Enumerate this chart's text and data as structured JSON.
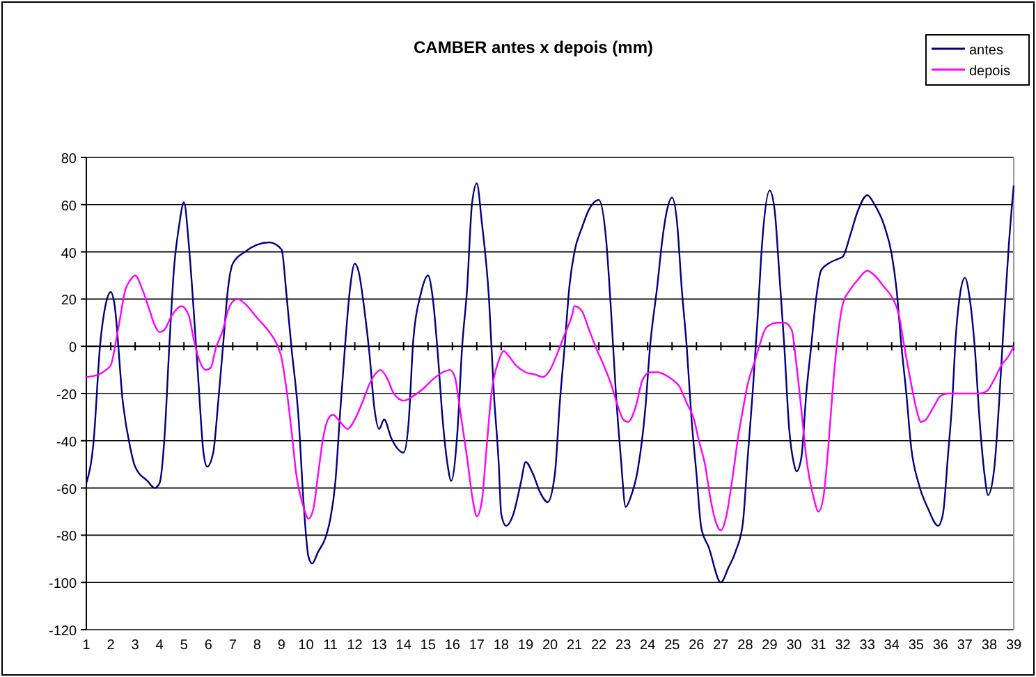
{
  "chart_data": {
    "type": "line",
    "title": "CAMBER antes x depois (mm)",
    "xlim": [
      1,
      39
    ],
    "xticks": [
      1,
      2,
      3,
      4,
      5,
      6,
      7,
      8,
      9,
      10,
      11,
      12,
      13,
      14,
      15,
      16,
      17,
      18,
      19,
      20,
      21,
      22,
      23,
      24,
      25,
      26,
      27,
      28,
      29,
      30,
      31,
      32,
      33,
      34,
      35,
      36,
      37,
      38,
      39
    ],
    "ylim": [
      -120,
      80
    ],
    "yticks": [
      -120,
      -100,
      -80,
      -60,
      -40,
      -20,
      0,
      20,
      40,
      60,
      80
    ],
    "grid": "y",
    "legend": "top right",
    "line_style": "solid",
    "series": [
      {
        "name": "antes",
        "color": "#000080",
        "x": [
          1,
          1.3,
          1.56,
          1.8,
          2,
          2.15,
          2.5,
          2.8,
          3,
          3.5,
          3.8,
          4,
          4.2,
          4.4,
          4.6,
          4.8,
          5,
          5.2,
          5.4,
          5.6,
          5.8,
          5.95,
          6.2,
          6.4,
          6.6,
          6.8,
          7,
          7.5,
          8,
          8.5,
          9,
          9.2,
          9.4,
          9.7,
          9.9,
          10.1,
          10.25,
          10.5,
          10.8,
          11,
          11.2,
          11.4,
          11.6,
          11.8,
          12,
          12.15,
          12.4,
          12.6,
          12.8,
          13,
          13.2,
          13.5,
          14,
          14.2,
          14.4,
          14.7,
          15,
          15.2,
          15.4,
          15.6,
          15.8,
          15.95,
          16.2,
          16.4,
          16.6,
          16.8,
          17,
          17.2,
          17.5,
          17.7,
          17.9,
          18,
          18.2,
          18.5,
          18.8,
          19,
          19.3,
          19.6,
          19.9,
          20.2,
          20.4,
          20.6,
          20.8,
          21,
          21.3,
          21.6,
          22,
          22.3,
          22.5,
          22.7,
          22.9,
          23.1,
          23.3,
          23.6,
          23.9,
          24.1,
          24.4,
          24.6,
          24.8,
          25,
          25.2,
          25.4,
          25.6,
          25.8,
          26,
          26.2,
          26.5,
          27,
          27.3,
          27.6,
          27.9,
          28.1,
          28.3,
          28.5,
          28.7,
          29,
          29.2,
          29.4,
          29.6,
          29.8,
          30,
          30.1,
          30.3,
          30.5,
          30.7,
          30.9,
          31.1,
          31.4,
          31.8,
          32,
          32.3,
          32.6,
          33,
          33.3,
          33.7,
          34,
          34.2,
          34.4,
          34.6,
          34.8,
          35.1,
          35.5,
          35.9,
          36.1,
          36.3,
          36.5,
          36.6,
          36.8,
          37,
          37.2,
          37.4,
          37.6,
          37.8,
          37.95,
          38.2,
          38.4,
          38.6,
          38.8,
          39
        ],
        "values": [
          -58,
          -40,
          0,
          18,
          23,
          18,
          -24,
          -43,
          -51,
          -57,
          -60,
          -58,
          -39,
          0,
          34,
          51,
          61,
          43,
          15,
          -16,
          -45,
          -51,
          -45,
          -24,
          0,
          24,
          35,
          40,
          43,
          44,
          41,
          22,
          0,
          -31,
          -66,
          -89,
          -92,
          -87,
          -81,
          -73,
          -58,
          -28,
          0,
          24,
          35,
          32,
          15,
          -3,
          -26,
          -35,
          -31,
          -39,
          -45,
          -33,
          3,
          22,
          30,
          20,
          -3,
          -31,
          -50,
          -57,
          -37,
          0,
          24,
          60,
          69,
          53,
          20,
          -20,
          -50,
          -71,
          -76,
          -71,
          -58,
          -49,
          -54,
          -62,
          -66,
          -54,
          -24,
          0,
          26,
          40,
          50,
          58,
          62,
          45,
          15,
          -20,
          -47,
          -68,
          -64,
          -52,
          -27,
          0,
          26,
          45,
          58,
          63,
          53,
          24,
          0,
          -31,
          -54,
          -77,
          -85,
          -100,
          -94,
          -87,
          -75,
          -47,
          -20,
          11,
          45,
          66,
          58,
          30,
          0,
          -35,
          -50,
          -53,
          -47,
          -20,
          0,
          20,
          32,
          35,
          37,
          38,
          47,
          57,
          64,
          60,
          51,
          39,
          24,
          0,
          -20,
          -43,
          -58,
          -69,
          -76,
          -71,
          -47,
          -20,
          0,
          22,
          29,
          20,
          0,
          -31,
          -54,
          -63,
          -52,
          -24,
          11,
          43,
          68
        ]
      },
      {
        "name": "depois",
        "color": "#ff00ff",
        "x": [
          1,
          1.5,
          1.8,
          2,
          2.3,
          2.6,
          2.8,
          3,
          3.3,
          3.6,
          3.8,
          4,
          4.2,
          4.5,
          4.9,
          5.2,
          5.4,
          5.6,
          5.9,
          6.1,
          6.3,
          6.6,
          6.8,
          7,
          7.2,
          7.5,
          8,
          8.5,
          8.8,
          9,
          9.2,
          9.4,
          9.6,
          9.9,
          10.1,
          10.3,
          10.5,
          10.7,
          10.9,
          11.1,
          11.4,
          11.7,
          12,
          12.3,
          12.6,
          12.9,
          13.05,
          13.3,
          13.6,
          14,
          14.4,
          14.8,
          15.2,
          15.6,
          15.9,
          16.1,
          16.3,
          16.6,
          16.85,
          17,
          17.2,
          17.4,
          17.6,
          17.9,
          18.1,
          18.3,
          18.6,
          19,
          19.4,
          19.7,
          20,
          20.3,
          20.6,
          20.9,
          21,
          21.3,
          21.6,
          21.9,
          22.2,
          22.5,
          22.8,
          23,
          23.2,
          23.5,
          23.8,
          24.1,
          24.4,
          24.7,
          25,
          25.3,
          25.6,
          25.9,
          26.1,
          26.35,
          26.6,
          26.85,
          27,
          27.2,
          27.5,
          27.7,
          27.9,
          28.1,
          28.4,
          28.6,
          28.8,
          29,
          29.3,
          29.6,
          29.9,
          30.1,
          30.3,
          30.5,
          30.8,
          31,
          31.2,
          31.4,
          31.6,
          31.8,
          32,
          32.3,
          32.6,
          33,
          33.3,
          33.7,
          34,
          34.3,
          34.5,
          34.8,
          35,
          35.2,
          35.4,
          35.7,
          36,
          36.3,
          37,
          37.6,
          37.9,
          38.2,
          38.5,
          38.8,
          39
        ],
        "values": [
          -13,
          -12,
          -10,
          -8,
          7,
          24,
          28,
          30,
          24,
          15,
          9,
          6,
          7,
          13,
          17,
          13,
          3,
          -5,
          -10,
          -9,
          -1,
          7,
          15,
          19,
          20,
          18,
          12,
          6,
          1,
          -5,
          -18,
          -35,
          -54,
          -68,
          -73,
          -69,
          -54,
          -39,
          -31,
          -29,
          -32,
          -35,
          -31,
          -24,
          -16,
          -11,
          -10,
          -13,
          -20,
          -23,
          -21,
          -18,
          -14,
          -11,
          -10,
          -13,
          -26,
          -47,
          -66,
          -72,
          -66,
          -43,
          -20,
          -6,
          -2,
          -4,
          -8,
          -11,
          -12,
          -13,
          -10,
          -3,
          5,
          13,
          17,
          15,
          7,
          -1,
          -8,
          -16,
          -26,
          -31,
          -32,
          -26,
          -14,
          -11,
          -11,
          -12,
          -14,
          -17,
          -24,
          -31,
          -40,
          -50,
          -66,
          -76,
          -78,
          -73,
          -54,
          -39,
          -27,
          -16,
          -6,
          1,
          7,
          9,
          10,
          10,
          7,
          -8,
          -27,
          -47,
          -64,
          -70,
          -64,
          -43,
          -16,
          5,
          18,
          24,
          28,
          32,
          30,
          25,
          21,
          13,
          1,
          -16,
          -26,
          -32,
          -31,
          -26,
          -21,
          -20,
          -20,
          -20,
          -19,
          -14,
          -8,
          -4,
          0
        ]
      }
    ]
  }
}
